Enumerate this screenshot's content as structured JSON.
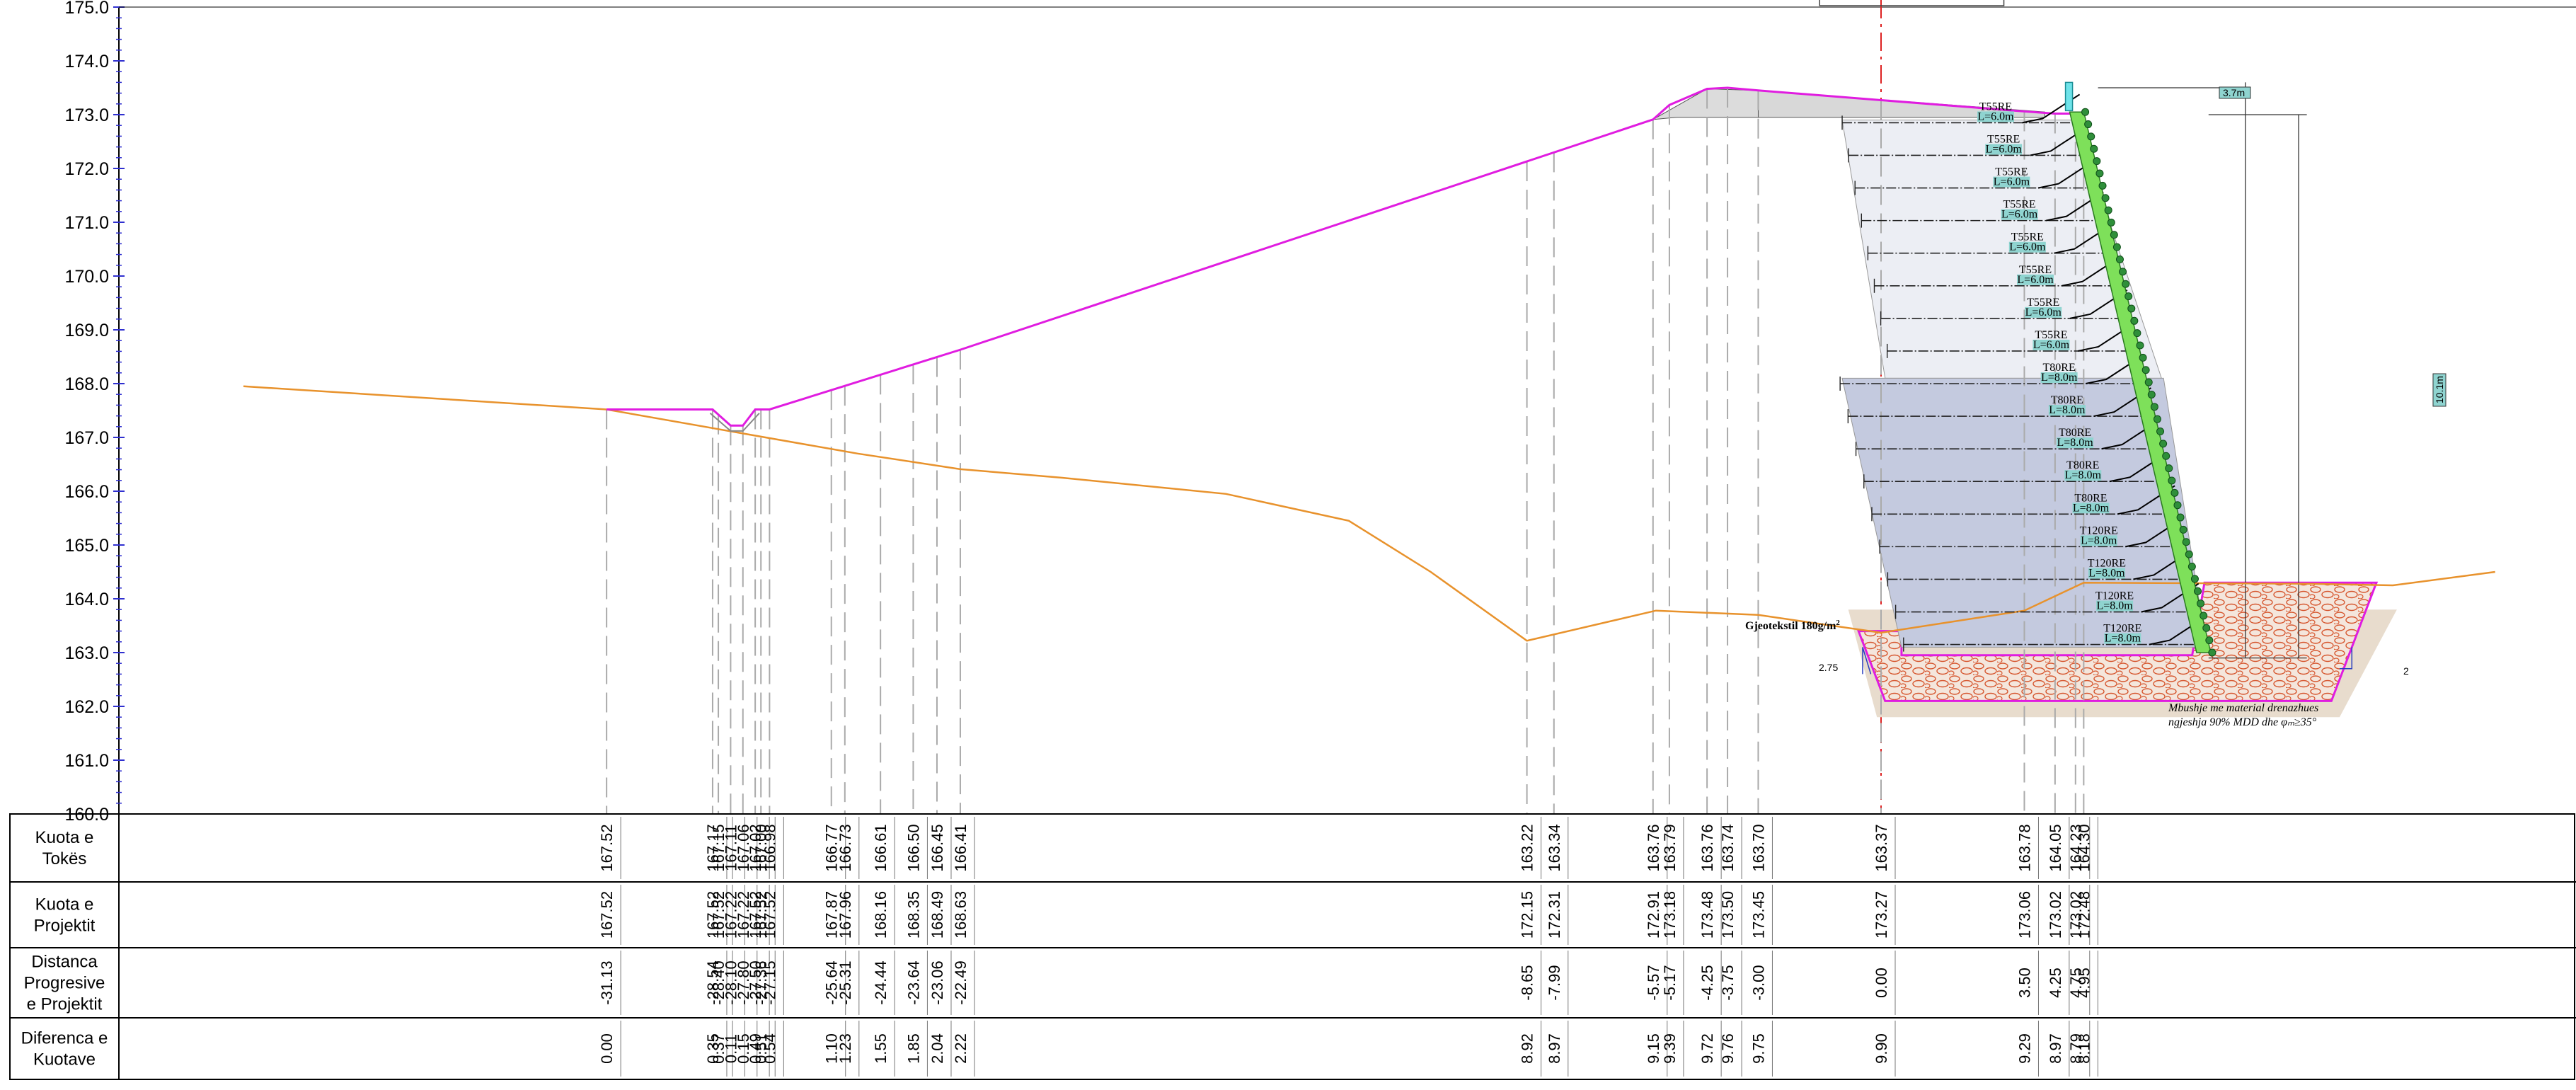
{
  "y_axis": {
    "min": 160,
    "max": 175,
    "step": 1,
    "labels": [
      "175.0",
      "174.0",
      "173.0",
      "172.0",
      "171.0",
      "170.0",
      "169.0",
      "168.0",
      "167.0",
      "166.0",
      "165.0",
      "164.0",
      "163.0",
      "162.0",
      "161.0",
      "160.0"
    ]
  },
  "table": {
    "row_headers": [
      [
        "Kuota e",
        "Tokës"
      ],
      [
        "Kuota e",
        "Projektit"
      ],
      [
        "Distanca",
        "Progresive",
        "e Projektit"
      ],
      [
        "Diferenca e",
        "Kuotave"
      ]
    ],
    "columns": [
      {
        "x": -31.13,
        "ground": "167.52",
        "project": "167.52",
        "dist": "-31.13",
        "diff": "0.00"
      },
      {
        "x": -28.54,
        "ground": "167.17",
        "project": "167.52",
        "dist": "-28.54",
        "diff": "0.35"
      },
      {
        "x": -28.4,
        "ground": "167.15",
        "project": "167.52",
        "dist": "-28.40",
        "diff": "0.37"
      },
      {
        "x": -28.1,
        "ground": "167.11",
        "project": "167.22",
        "dist": "-28.10",
        "diff": "0.11"
      },
      {
        "x": -27.8,
        "ground": "167.06",
        "project": "167.22",
        "dist": "-27.80",
        "diff": "0.15"
      },
      {
        "x": -27.5,
        "ground": "167.02",
        "project": "167.52",
        "dist": "-27.50",
        "diff": "0.49"
      },
      {
        "x": -27.36,
        "ground": "167.00",
        "project": "167.52",
        "dist": "-27.36",
        "diff": "0.51"
      },
      {
        "x": -27.15,
        "ground": "166.98",
        "project": "167.52",
        "dist": "-27.15",
        "diff": "0.54"
      },
      {
        "x": -25.64,
        "ground": "166.77",
        "project": "167.87",
        "dist": "-25.64",
        "diff": "1.10"
      },
      {
        "x": -25.31,
        "ground": "166.73",
        "project": "167.96",
        "dist": "-25.31",
        "diff": "1.23"
      },
      {
        "x": -24.44,
        "ground": "166.61",
        "project": "168.16",
        "dist": "-24.44",
        "diff": "1.55"
      },
      {
        "x": -23.64,
        "ground": "166.50",
        "project": "168.35",
        "dist": "-23.64",
        "diff": "1.85"
      },
      {
        "x": -23.06,
        "ground": "166.45",
        "project": "168.49",
        "dist": "-23.06",
        "diff": "2.04"
      },
      {
        "x": -22.49,
        "ground": "166.41",
        "project": "168.63",
        "dist": "-22.49",
        "diff": "2.22"
      },
      {
        "x": -8.65,
        "ground": "163.22",
        "project": "172.15",
        "dist": "-8.65",
        "diff": "8.92"
      },
      {
        "x": -7.99,
        "ground": "163.34",
        "project": "172.31",
        "dist": "-7.99",
        "diff": "8.97"
      },
      {
        "x": -5.57,
        "ground": "163.76",
        "project": "172.91",
        "dist": "-5.57",
        "diff": "9.15"
      },
      {
        "x": -5.17,
        "ground": "163.79",
        "project": "173.18",
        "dist": "-5.17",
        "diff": "9.39"
      },
      {
        "x": -4.25,
        "ground": "163.76",
        "project": "173.48",
        "dist": "-4.25",
        "diff": "9.72"
      },
      {
        "x": -3.75,
        "ground": "163.74",
        "project": "173.50",
        "dist": "-3.75",
        "diff": "9.76"
      },
      {
        "x": -3.0,
        "ground": "163.70",
        "project": "173.45",
        "dist": "-3.00",
        "diff": "9.75"
      },
      {
        "x": 0.0,
        "ground": "163.37",
        "project": "173.27",
        "dist": "0.00",
        "diff": "9.90"
      },
      {
        "x": 3.5,
        "ground": "163.78",
        "project": "173.06",
        "dist": "3.50",
        "diff": "9.29"
      },
      {
        "x": 4.25,
        "ground": "164.05",
        "project": "173.02",
        "dist": "4.25",
        "diff": "8.97"
      },
      {
        "x": 4.75,
        "ground": "164.23",
        "project": "173.02",
        "dist": "4.75",
        "diff": "8.79"
      },
      {
        "x": 4.95,
        "ground": "164.30",
        "project": "172.48",
        "dist": "4.95",
        "diff": "8.18"
      }
    ]
  },
  "ground_profile": [
    [
      -40.0,
      167.95
    ],
    [
      -31.13,
      167.52
    ],
    [
      -28.0,
      167.1
    ],
    [
      -25.0,
      166.7
    ],
    [
      -22.49,
      166.41
    ],
    [
      -20.0,
      166.25
    ],
    [
      -16.0,
      165.95
    ],
    [
      -13.0,
      165.45
    ],
    [
      -11.0,
      164.5
    ],
    [
      -8.65,
      163.22
    ],
    [
      -5.5,
      163.78
    ],
    [
      -3.0,
      163.7
    ],
    [
      0.0,
      163.37
    ],
    [
      3.5,
      163.78
    ],
    [
      4.95,
      164.3
    ],
    [
      10.5,
      164.28
    ],
    [
      12.5,
      164.25
    ],
    [
      15.0,
      164.5
    ]
  ],
  "design_profile": [
    [
      -31.13,
      167.52
    ],
    [
      -28.54,
      167.52
    ],
    [
      -28.1,
      167.22
    ],
    [
      -27.8,
      167.22
    ],
    [
      -27.5,
      167.52
    ],
    [
      -27.15,
      167.52
    ],
    [
      -22.49,
      168.63
    ],
    [
      -5.57,
      172.91
    ],
    [
      -5.17,
      173.18
    ],
    [
      -4.25,
      173.48
    ],
    [
      -3.75,
      173.5
    ],
    [
      -3.0,
      173.45
    ],
    [
      0.0,
      173.27
    ],
    [
      3.5,
      173.06
    ],
    [
      4.25,
      173.02
    ],
    [
      4.75,
      173.02
    ],
    [
      4.95,
      172.48
    ]
  ],
  "reinforcement_layers": [
    {
      "type": "T55RE",
      "length": "L=6.0m"
    },
    {
      "type": "T55RE",
      "length": "L=6.0m"
    },
    {
      "type": "T55RE",
      "length": "L=6.0m"
    },
    {
      "type": "T55RE",
      "length": "L=6.0m"
    },
    {
      "type": "T55RE",
      "length": "L=6.0m"
    },
    {
      "type": "T55RE",
      "length": "L=6.0m"
    },
    {
      "type": "T55RE",
      "length": "L=6.0m"
    },
    {
      "type": "T55RE",
      "length": "L=6.0m"
    },
    {
      "type": "T80RE",
      "length": "L=8.0m"
    },
    {
      "type": "T80RE",
      "length": "L=8.0m"
    },
    {
      "type": "T80RE",
      "length": "L=8.0m"
    },
    {
      "type": "T80RE",
      "length": "L=8.0m"
    },
    {
      "type": "T80RE",
      "length": "L=8.0m"
    },
    {
      "type": "T120RE",
      "length": "L=8.0m"
    },
    {
      "type": "T120RE",
      "length": "L=8.0m"
    },
    {
      "type": "T120RE",
      "length": "L=8.0m"
    },
    {
      "type": "T120RE",
      "length": "L=8.0m"
    }
  ],
  "annotations": {
    "geotextile": "Gjeotekstil 180g/m",
    "geotextile_sup": "2",
    "fill_note_1": "Mbushje me material drenazhues",
    "fill_note_2": "ngjeshja 90% MDD dhe φₘ≥35°",
    "slope_left": "2.75",
    "slope_right": "2",
    "dim_top": "3.7m",
    "dim_height": "10.1m"
  },
  "colors": {
    "design_line": "#e01ce0",
    "ground_line": "#e8922c",
    "wall_face": "#7ee05a",
    "zone_upper": "#eceef4",
    "zone_lower": "#c4cadf",
    "axis_tick": "#3030d0",
    "label_box": "#8fd4d0",
    "gravel": "#d6562e"
  }
}
